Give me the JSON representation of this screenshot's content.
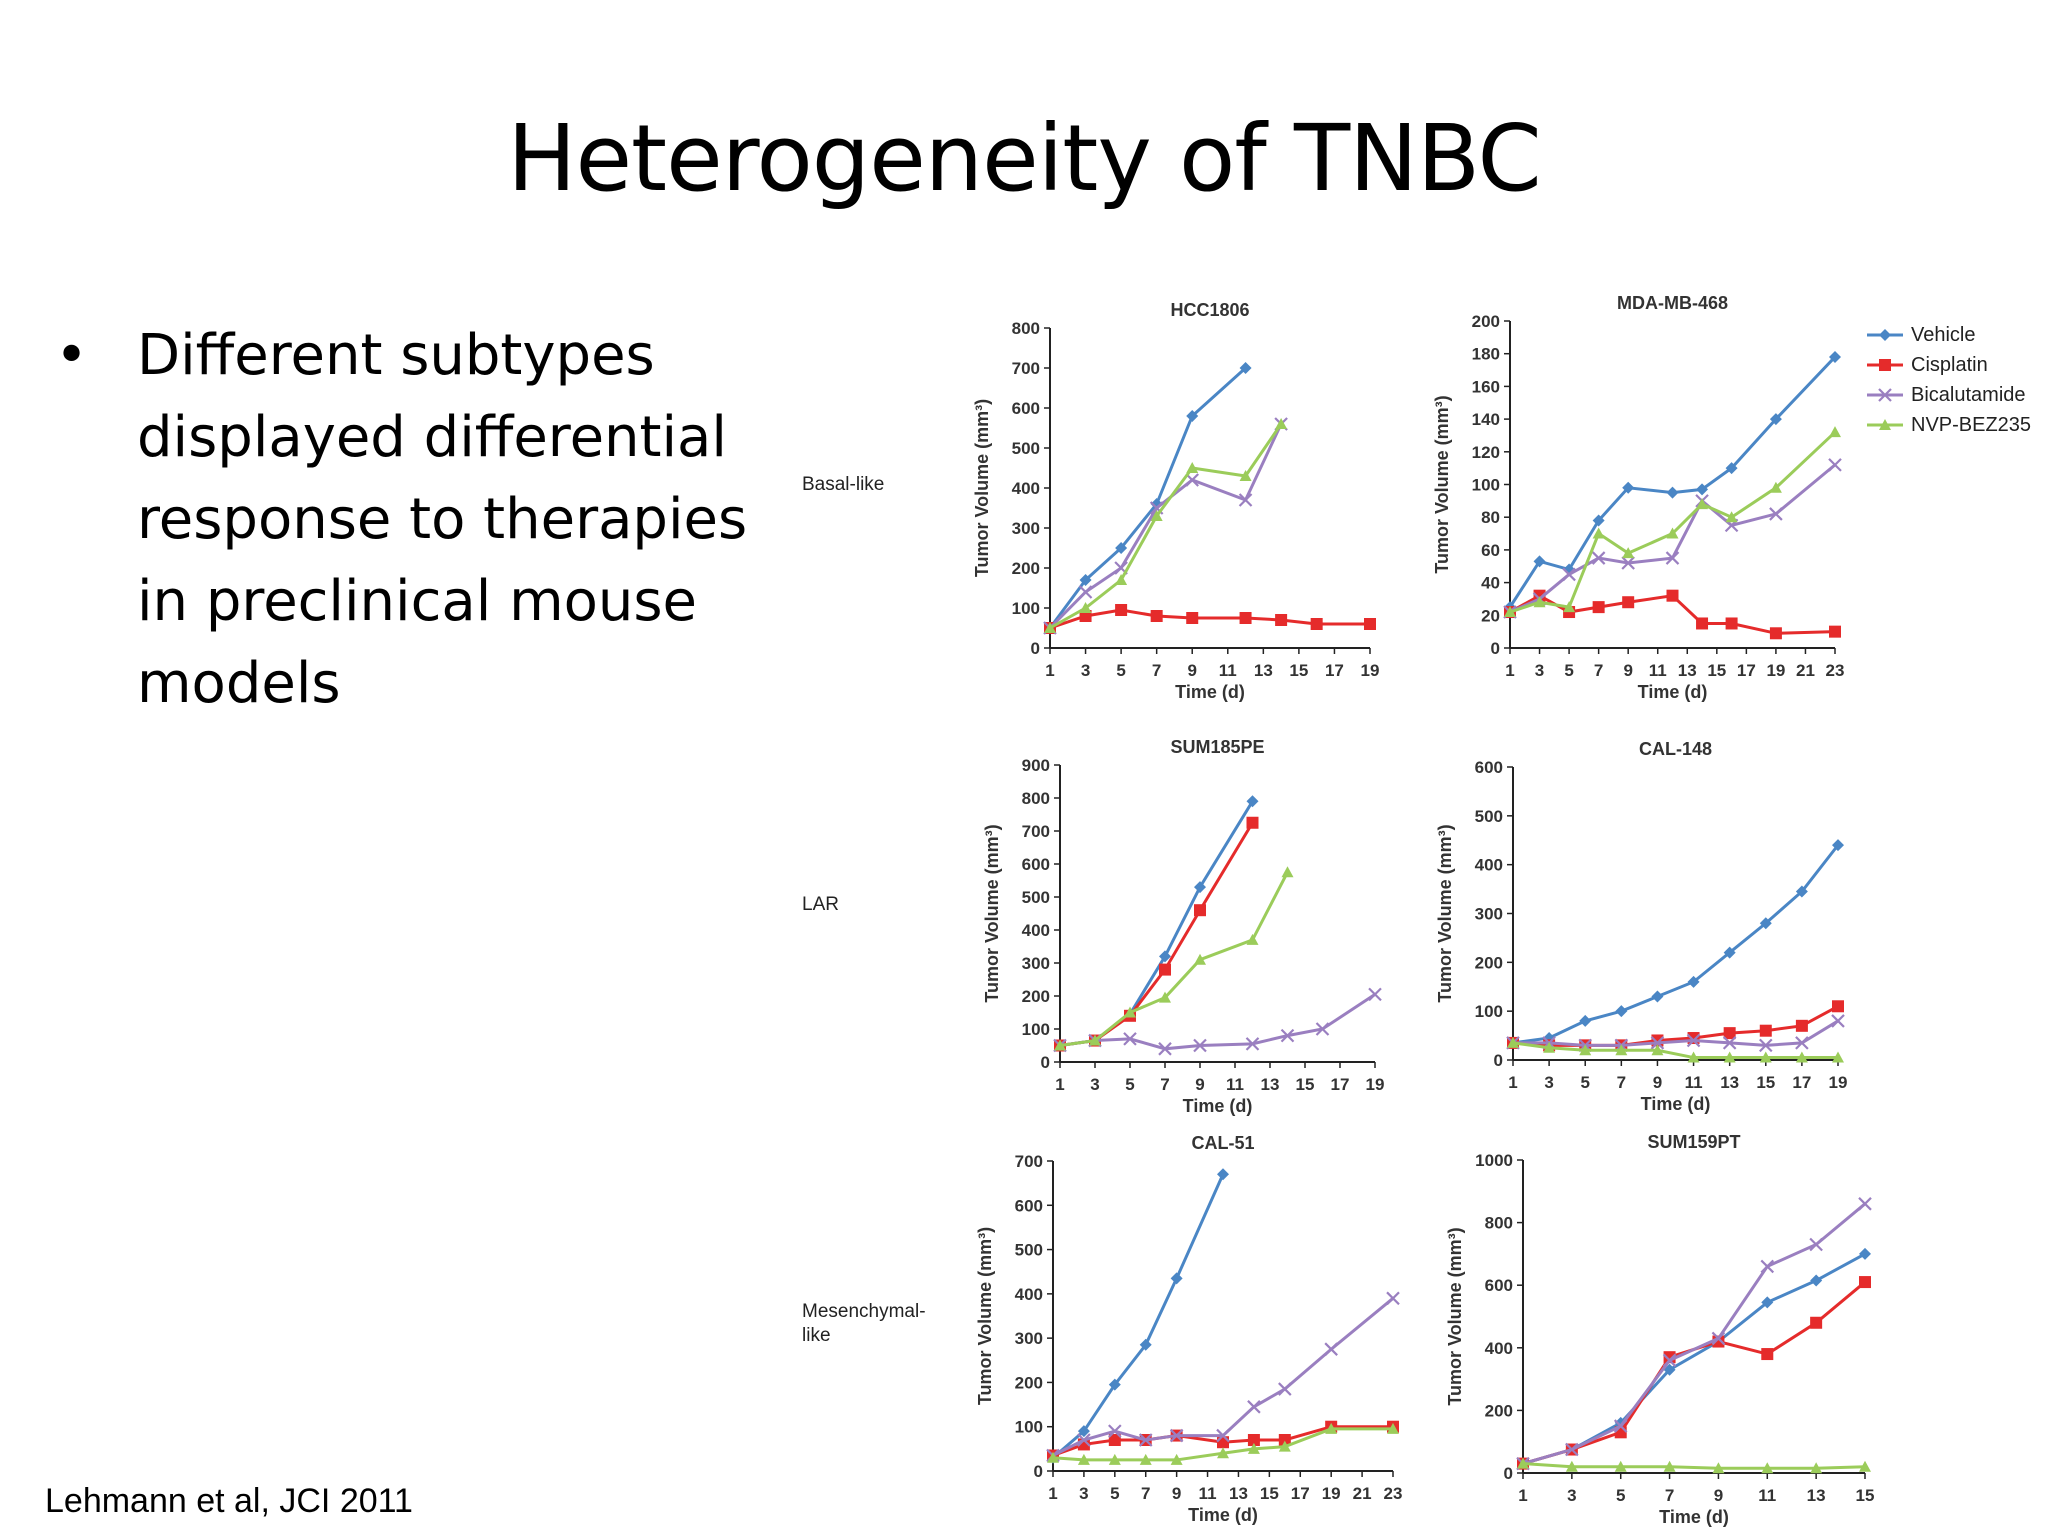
{
  "slide": {
    "title": "Heterogeneity of TNBC",
    "bullet_marker": "•",
    "bullet_text": "Different subtypes displayed differential response to therapies in preclinical mouse models",
    "citation": "Lehmann et al, JCI 2011"
  },
  "row_labels": [
    "Basal-like",
    "LAR",
    "Mesenchymal-like"
  ],
  "legend": [
    {
      "name": "Vehicle",
      "color": "#4a86c5",
      "marker": "diamond"
    },
    {
      "name": "Cisplatin",
      "color": "#e52b2b",
      "marker": "square"
    },
    {
      "name": "Bicalutamide",
      "color": "#9a7fc0",
      "marker": "cross"
    },
    {
      "name": "NVP-BEZ235",
      "color": "#9bcc5a",
      "marker": "triangle"
    }
  ],
  "chart_data": [
    {
      "type": "line",
      "title": "HCC1806",
      "xlabel": "Time (d)",
      "ylabel": "Tumor Volume (mm³)",
      "xticks": [
        1,
        3,
        5,
        7,
        9,
        11,
        13,
        15,
        17,
        19
      ],
      "xlim": [
        1,
        19
      ],
      "yticks": [
        0,
        100,
        200,
        300,
        400,
        500,
        600,
        700,
        800
      ],
      "ylim": [
        0,
        800
      ],
      "series": [
        {
          "name": "Vehicle",
          "x": [
            1,
            3,
            5,
            7,
            9,
            12
          ],
          "y": [
            50,
            170,
            250,
            360,
            580,
            700
          ]
        },
        {
          "name": "Cisplatin",
          "x": [
            1,
            3,
            5,
            7,
            9,
            12,
            14,
            16,
            19
          ],
          "y": [
            50,
            80,
            95,
            80,
            75,
            75,
            70,
            60,
            60
          ]
        },
        {
          "name": "Bicalutamide",
          "x": [
            1,
            3,
            5,
            7,
            9,
            12,
            14
          ],
          "y": [
            50,
            140,
            200,
            350,
            420,
            370,
            560
          ]
        },
        {
          "name": "NVP-BEZ235",
          "x": [
            1,
            3,
            5,
            7,
            9,
            12,
            14
          ],
          "y": [
            50,
            100,
            170,
            330,
            450,
            430,
            560
          ]
        }
      ]
    },
    {
      "type": "line",
      "title": "MDA-MB-468",
      "xlabel": "Time (d)",
      "ylabel": "Tumor Volume (mm³)",
      "xticks": [
        1,
        3,
        5,
        7,
        9,
        11,
        13,
        15,
        17,
        19,
        21,
        23
      ],
      "xlim": [
        1,
        23
      ],
      "yticks": [
        0,
        20,
        40,
        60,
        80,
        100,
        120,
        140,
        160,
        180,
        200
      ],
      "ylim": [
        0,
        200
      ],
      "series": [
        {
          "name": "Vehicle",
          "x": [
            1,
            3,
            5,
            7,
            9,
            12,
            14,
            16,
            19,
            23
          ],
          "y": [
            25,
            53,
            48,
            78,
            98,
            95,
            97,
            110,
            140,
            178
          ]
        },
        {
          "name": "Cisplatin",
          "x": [
            1,
            3,
            5,
            7,
            9,
            12,
            14,
            16,
            19,
            23
          ],
          "y": [
            22,
            32,
            22,
            25,
            28,
            32,
            15,
            15,
            9,
            10
          ]
        },
        {
          "name": "Bicalutamide",
          "x": [
            1,
            3,
            5,
            7,
            9,
            12,
            14,
            16,
            19,
            23
          ],
          "y": [
            22,
            30,
            45,
            55,
            52,
            55,
            90,
            75,
            82,
            112
          ]
        },
        {
          "name": "NVP-BEZ235",
          "x": [
            1,
            3,
            5,
            7,
            9,
            12,
            14,
            16,
            19,
            23
          ],
          "y": [
            22,
            28,
            25,
            70,
            58,
            70,
            88,
            80,
            98,
            132
          ]
        }
      ]
    },
    {
      "type": "line",
      "title": "SUM185PE",
      "xlabel": "Time (d)",
      "ylabel": "Tumor Volume (mm³)",
      "xticks": [
        1,
        3,
        5,
        7,
        9,
        11,
        13,
        15,
        17,
        19
      ],
      "xlim": [
        1,
        19
      ],
      "yticks": [
        0,
        100,
        200,
        300,
        400,
        500,
        600,
        700,
        800,
        900
      ],
      "ylim": [
        0,
        900
      ],
      "series": [
        {
          "name": "Vehicle",
          "x": [
            1,
            3,
            5,
            7,
            9,
            12
          ],
          "y": [
            50,
            65,
            145,
            320,
            530,
            790
          ]
        },
        {
          "name": "Cisplatin",
          "x": [
            1,
            3,
            5,
            7,
            9,
            12
          ],
          "y": [
            50,
            65,
            140,
            280,
            460,
            725
          ]
        },
        {
          "name": "Bicalutamide",
          "x": [
            1,
            3,
            5,
            7,
            9,
            12,
            14,
            16,
            19
          ],
          "y": [
            50,
            65,
            70,
            40,
            50,
            55,
            80,
            100,
            205
          ]
        },
        {
          "name": "NVP-BEZ235",
          "x": [
            1,
            3,
            5,
            7,
            9,
            12,
            14
          ],
          "y": [
            50,
            65,
            150,
            195,
            310,
            370,
            575
          ]
        }
      ]
    },
    {
      "type": "line",
      "title": "CAL-148",
      "xlabel": "Time (d)",
      "ylabel": "Tumor Volume (mm³)",
      "xticks": [
        1,
        3,
        5,
        7,
        9,
        11,
        13,
        15,
        17,
        19
      ],
      "xlim": [
        1,
        19
      ],
      "yticks": [
        0,
        100,
        200,
        300,
        400,
        500,
        600
      ],
      "ylim": [
        0,
        600
      ],
      "series": [
        {
          "name": "Vehicle",
          "x": [
            1,
            3,
            5,
            7,
            9,
            11,
            13,
            15,
            17,
            19
          ],
          "y": [
            35,
            45,
            80,
            100,
            130,
            160,
            220,
            280,
            345,
            440
          ]
        },
        {
          "name": "Cisplatin",
          "x": [
            1,
            3,
            5,
            7,
            9,
            11,
            13,
            15,
            17,
            19
          ],
          "y": [
            35,
            30,
            30,
            30,
            40,
            45,
            55,
            60,
            70,
            110
          ]
        },
        {
          "name": "Bicalutamide",
          "x": [
            1,
            3,
            5,
            7,
            9,
            11,
            13,
            15,
            17,
            19
          ],
          "y": [
            35,
            35,
            30,
            30,
            35,
            40,
            35,
            30,
            35,
            80
          ]
        },
        {
          "name": "NVP-BEZ235",
          "x": [
            1,
            3,
            5,
            7,
            9,
            11,
            13,
            15,
            17,
            19
          ],
          "y": [
            35,
            25,
            20,
            20,
            20,
            5,
            5,
            5,
            5,
            5
          ]
        }
      ]
    },
    {
      "type": "line",
      "title": "CAL-51",
      "xlabel": "Time (d)",
      "ylabel": "Tumor Volume (mm³)",
      "xticks": [
        1,
        3,
        5,
        7,
        9,
        11,
        13,
        15,
        17,
        19,
        21,
        23
      ],
      "xlim": [
        1,
        23
      ],
      "yticks": [
        0,
        100,
        200,
        300,
        400,
        500,
        600,
        700
      ],
      "ylim": [
        0,
        700
      ],
      "series": [
        {
          "name": "Vehicle",
          "x": [
            1,
            3,
            5,
            7,
            9,
            12
          ],
          "y": [
            30,
            90,
            195,
            285,
            435,
            670
          ]
        },
        {
          "name": "Cisplatin",
          "x": [
            1,
            3,
            5,
            7,
            9,
            12,
            14,
            16,
            19,
            23
          ],
          "y": [
            35,
            60,
            70,
            70,
            80,
            65,
            70,
            70,
            100,
            100
          ]
        },
        {
          "name": "Bicalutamide",
          "x": [
            1,
            3,
            5,
            7,
            9,
            12,
            14,
            16,
            19,
            23
          ],
          "y": [
            35,
            70,
            90,
            70,
            80,
            80,
            145,
            185,
            275,
            390
          ]
        },
        {
          "name": "NVP-BEZ235",
          "x": [
            1,
            3,
            5,
            7,
            9,
            12,
            14,
            16,
            19,
            23
          ],
          "y": [
            30,
            25,
            25,
            25,
            25,
            40,
            50,
            55,
            95,
            95
          ]
        }
      ]
    },
    {
      "type": "line",
      "title": "SUM159PT",
      "xlabel": "Time (d)",
      "ylabel": "Tumor Volume (mm³)",
      "xticks": [
        1,
        3,
        5,
        7,
        9,
        11,
        13,
        15
      ],
      "xlim": [
        1,
        15
      ],
      "yticks": [
        0,
        200,
        400,
        600,
        800,
        1000
      ],
      "ylim": [
        0,
        1000
      ],
      "series": [
        {
          "name": "Vehicle",
          "x": [
            1,
            3,
            5,
            7,
            9,
            11,
            13,
            15
          ],
          "y": [
            30,
            75,
            160,
            330,
            420,
            545,
            615,
            700
          ]
        },
        {
          "name": "Cisplatin",
          "x": [
            1,
            3,
            5,
            7,
            9,
            11,
            13,
            15
          ],
          "y": [
            30,
            75,
            130,
            370,
            420,
            380,
            480,
            610
          ]
        },
        {
          "name": "Bicalutamide",
          "x": [
            1,
            3,
            5,
            7,
            9,
            11,
            13,
            15
          ],
          "y": [
            30,
            75,
            150,
            360,
            430,
            660,
            730,
            860
          ]
        },
        {
          "name": "NVP-BEZ235",
          "x": [
            1,
            3,
            5,
            7,
            9,
            11,
            13,
            15
          ],
          "y": [
            30,
            20,
            20,
            20,
            15,
            15,
            15,
            20
          ]
        }
      ]
    }
  ]
}
